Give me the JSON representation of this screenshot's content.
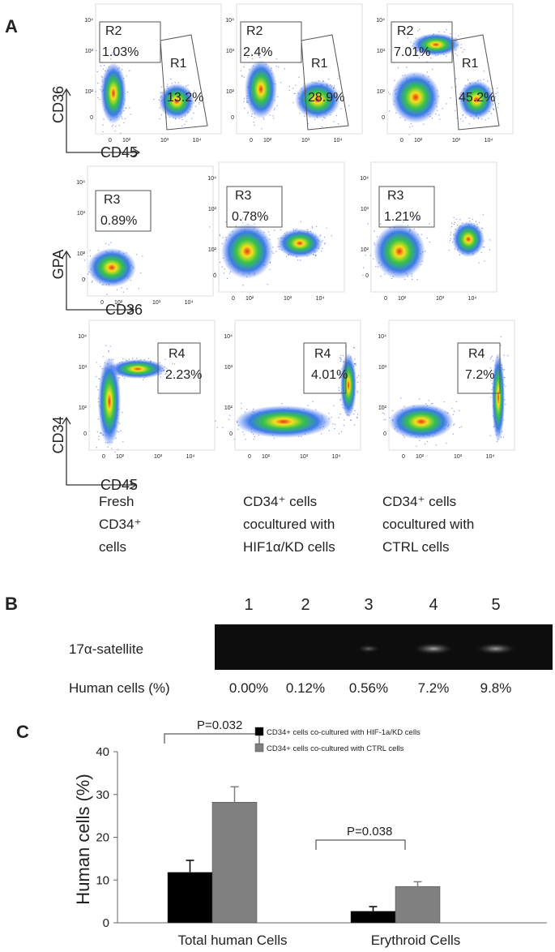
{
  "figure": {
    "panel_a": {
      "label": "A",
      "ticks": [
        "0",
        "10²",
        "10³",
        "10⁴"
      ],
      "rows": [
        {
          "y_label": "CD36",
          "x_label": "CD45",
          "plots": [
            [
              {
                "name": "R2",
                "value": "1.03%"
              },
              {
                "name": "R1",
                "value": "13.2%"
              }
            ],
            [
              {
                "name": "R2",
                "value": "2.4%"
              },
              {
                "name": "R1",
                "value": "28.9%"
              }
            ],
            [
              {
                "name": "R2",
                "value": "7.01%"
              },
              {
                "name": "R1",
                "value": "45.2%"
              }
            ]
          ]
        },
        {
          "y_label": "GPA",
          "x_label": "CD36",
          "plots": [
            [
              {
                "name": "R3",
                "value": "0.89%"
              }
            ],
            [
              {
                "name": "R3",
                "value": "0.78%"
              }
            ],
            [
              {
                "name": "R3",
                "value": "1.21%"
              }
            ]
          ]
        },
        {
          "y_label": "CD34",
          "x_label": "CD45",
          "plots": [
            [
              {
                "name": "R4",
                "value": "2.23%"
              }
            ],
            [
              {
                "name": "R4",
                "value": "4.01%"
              }
            ],
            [
              {
                "name": "R4",
                "value": "7.2%"
              }
            ]
          ]
        }
      ],
      "columns": [
        [
          "Fresh",
          "CD34⁺",
          "cells"
        ],
        [
          "CD34⁺ cells",
          "cocultured with",
          "HIF1α/KD cells"
        ],
        [
          "CD34⁺ cells",
          "cocultured with",
          "CTRL  cells"
        ]
      ]
    },
    "panel_b": {
      "label": "B",
      "lanes": [
        "1",
        "2",
        "3",
        "4",
        "5"
      ],
      "band_label": "17α-satellite",
      "row_label": "Human cells (%)",
      "percentages": [
        "0.00%",
        "0.12%",
        "0.56%",
        "7.2%",
        "9.8%"
      ]
    },
    "panel_c": {
      "label": "C"
    }
  },
  "chart_data": {
    "type": "bar",
    "y_label": "Human cells (%)",
    "categories": [
      "Total human  Cells",
      "Erythroid Cells"
    ],
    "series": [
      {
        "name": "CD34+ cells co-cultured with HIF-1a/KD cells",
        "color": "#000000",
        "values": [
          11.8,
          2.7
        ],
        "errors": [
          2.8,
          1.1
        ]
      },
      {
        "name": "CD34+ cells co-cultured with CTRL cells",
        "color": "#808080",
        "values": [
          28.2,
          8.5
        ],
        "errors": [
          3.6,
          1.1
        ]
      }
    ],
    "annotations": [
      "P=0.032",
      "P=0.038"
    ],
    "ylim": [
      0,
      40
    ],
    "yticks": [
      0,
      10,
      20,
      30,
      40
    ]
  }
}
